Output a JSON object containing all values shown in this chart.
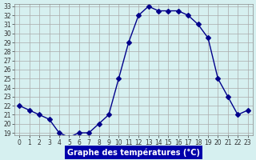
{
  "hours": [
    0,
    1,
    2,
    3,
    4,
    5,
    6,
    7,
    8,
    9,
    10,
    11,
    12,
    13,
    14,
    15,
    16,
    17,
    18,
    19,
    20,
    21,
    22,
    23
  ],
  "temps": [
    22,
    21.5,
    21,
    20.5,
    19,
    18.5,
    19,
    19,
    20,
    21,
    25,
    29,
    32,
    33,
    32.5,
    32.5,
    32.5,
    32,
    31,
    29.5,
    25,
    23,
    21,
    21.5
  ],
  "line_color": "#00008B",
  "marker": "D",
  "marker_size": 3,
  "bg_color": "#d6f0f0",
  "grid_color": "#aaaaaa",
  "xlabel": "Graphe des températures (°C)",
  "xlabel_bg": "#0000aa",
  "xlabel_color": "#ffffff",
  "ylim": [
    19,
    33
  ],
  "xlim": [
    0,
    23
  ],
  "yticks": [
    19,
    20,
    21,
    22,
    23,
    24,
    25,
    26,
    27,
    28,
    29,
    30,
    31,
    32,
    33
  ],
  "xticks": [
    0,
    1,
    2,
    3,
    4,
    5,
    6,
    7,
    8,
    9,
    10,
    11,
    12,
    13,
    14,
    15,
    16,
    17,
    18,
    19,
    20,
    21,
    22,
    23
  ],
  "tick_fontsize": 5.5,
  "xlabel_fontsize": 7
}
